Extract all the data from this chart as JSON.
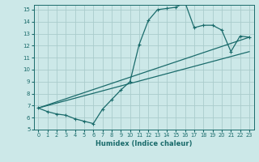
{
  "xlabel": "Humidex (Indice chaleur)",
  "bg_color": "#cce8e8",
  "line_color": "#1a6b6b",
  "grid_color": "#aacccc",
  "xlim": [
    -0.5,
    23.5
  ],
  "ylim": [
    5,
    15.4
  ],
  "xticks": [
    0,
    1,
    2,
    3,
    4,
    5,
    6,
    7,
    8,
    9,
    10,
    11,
    12,
    13,
    14,
    15,
    16,
    17,
    18,
    19,
    20,
    21,
    22,
    23
  ],
  "yticks": [
    5,
    6,
    7,
    8,
    9,
    10,
    11,
    12,
    13,
    14,
    15
  ],
  "line1_x": [
    0,
    1,
    2,
    3,
    4,
    5,
    6,
    7,
    8,
    9,
    10,
    11,
    12,
    13,
    14,
    15,
    16,
    17,
    18,
    19,
    20,
    21,
    22,
    23
  ],
  "line1_y": [
    6.8,
    6.5,
    6.3,
    6.2,
    5.9,
    5.7,
    5.5,
    6.7,
    7.5,
    8.3,
    9.0,
    12.1,
    14.1,
    15.0,
    15.1,
    15.2,
    15.6,
    13.5,
    13.7,
    13.7,
    13.3,
    11.5,
    12.8,
    12.7
  ],
  "line2_x": [
    0,
    23
  ],
  "line2_y": [
    6.8,
    12.7
  ],
  "line3_x": [
    0,
    23
  ],
  "line3_y": [
    6.8,
    11.5
  ]
}
